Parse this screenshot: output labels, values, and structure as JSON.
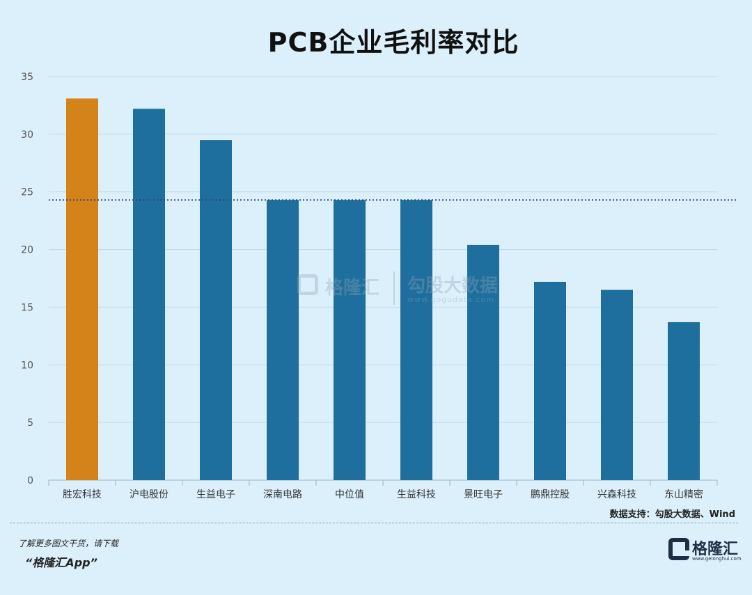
{
  "chart_data": {
    "type": "bar",
    "title": "PCB企业毛利率对比",
    "categories": [
      "胜宏科技",
      "沪电股份",
      "生益电子",
      "深南电路",
      "中位值",
      "生益科技",
      "景旺电子",
      "鹏鼎控股",
      "兴森科技",
      "东山精密"
    ],
    "values": [
      33.1,
      32.2,
      29.5,
      24.3,
      24.3,
      24.3,
      20.4,
      17.2,
      16.5,
      13.7
    ],
    "highlight_index": 0,
    "reference_line": 24.3,
    "ylim": [
      0,
      35
    ],
    "yticks": [
      0,
      5,
      10,
      15,
      20,
      25,
      30,
      35
    ],
    "grid": true,
    "colors": {
      "bar": "#1f6f9e",
      "highlight": "#d4831a",
      "reference": "#2d3f7a",
      "grid": "#c2d8e4"
    }
  },
  "watermark": {
    "brand": "格隆汇",
    "name": "勾股大数据",
    "url": "www.gogudata.com"
  },
  "source": "数据支持：勾股大数据、Wind",
  "footer": {
    "tip": "了解更多图文干货，请下载",
    "app": "“格隆汇App”",
    "logo_text": "格隆汇",
    "logo_url": "www.gelonghui.com"
  }
}
